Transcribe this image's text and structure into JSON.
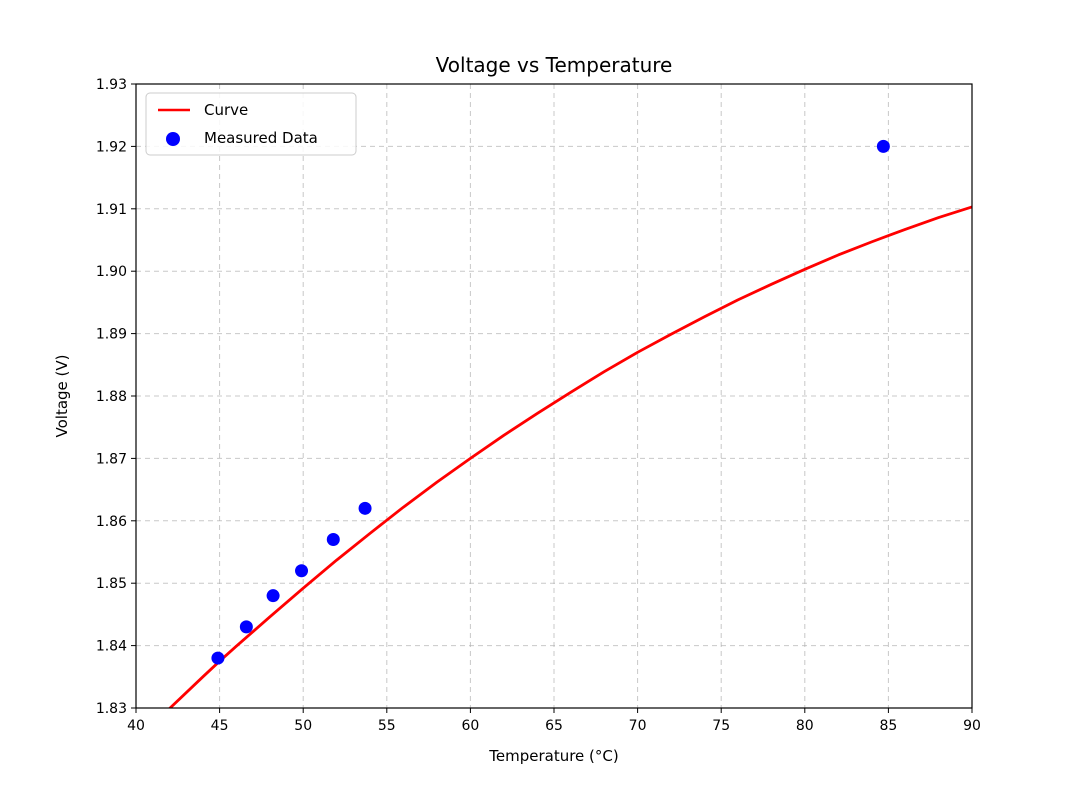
{
  "chart_data": {
    "type": "scatter",
    "title": "Voltage vs Temperature",
    "xlabel": "Temperature (°C)",
    "ylabel": "Voltage (V)",
    "xlim": [
      40,
      90
    ],
    "ylim": [
      1.83,
      1.93
    ],
    "xticks": [
      40,
      45,
      50,
      55,
      60,
      65,
      70,
      75,
      80,
      85,
      90
    ],
    "xtick_labels": [
      "40",
      "45",
      "50",
      "55",
      "60",
      "65",
      "70",
      "75",
      "80",
      "85",
      "90"
    ],
    "yticks": [
      1.83,
      1.84,
      1.85,
      1.86,
      1.87,
      1.88,
      1.89,
      1.9,
      1.91,
      1.92,
      1.93
    ],
    "ytick_labels": [
      "1.83",
      "1.84",
      "1.85",
      "1.86",
      "1.87",
      "1.88",
      "1.89",
      "1.90",
      "1.91",
      "1.92",
      "1.93"
    ],
    "grid": true,
    "legend_position": "top-left",
    "series": [
      {
        "name": "Curve",
        "kind": "line",
        "color": "#ff0000",
        "x": [
          40,
          42,
          44,
          45,
          46,
          48,
          50,
          52,
          54,
          56,
          58,
          60,
          62,
          64,
          66,
          68,
          70,
          72,
          74,
          76,
          78,
          80,
          82,
          84,
          86,
          88,
          90
        ],
        "y": [
          1.8247,
          1.8299,
          1.835,
          1.8375,
          1.8399,
          1.8446,
          1.8492,
          1.8537,
          1.858,
          1.8622,
          1.8662,
          1.87,
          1.8737,
          1.8772,
          1.8806,
          1.8839,
          1.887,
          1.8899,
          1.8927,
          1.8954,
          1.8979,
          1.9003,
          1.9026,
          1.9047,
          1.9067,
          1.9086,
          1.9103
        ]
      },
      {
        "name": "Measured Data",
        "kind": "scatter",
        "color": "#0000ff",
        "x": [
          44.9,
          46.6,
          48.2,
          49.9,
          51.8,
          53.7,
          84.7
        ],
        "y": [
          1.838,
          1.843,
          1.848,
          1.852,
          1.857,
          1.862,
          1.92
        ]
      }
    ]
  }
}
